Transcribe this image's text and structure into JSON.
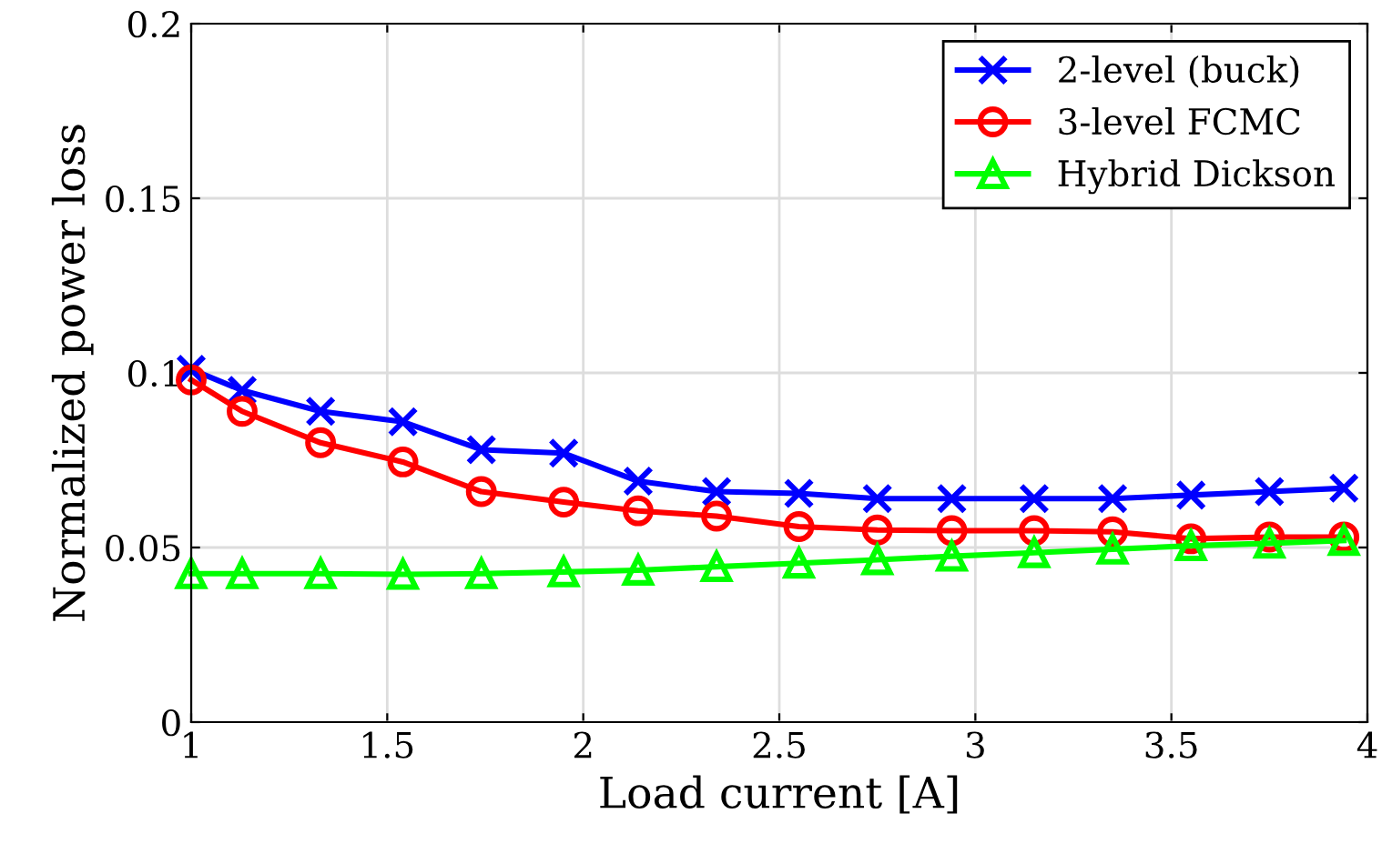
{
  "chart_data": {
    "type": "line",
    "xlabel": "Load current [A]",
    "ylabel": "Normalized power loss",
    "x": [
      1.0,
      1.13,
      1.33,
      1.54,
      1.74,
      1.95,
      2.14,
      2.34,
      2.55,
      2.75,
      2.94,
      3.15,
      3.35,
      3.55,
      3.75,
      3.94
    ],
    "series": [
      {
        "name": "2-level (buck)",
        "color": "#0000ff",
        "marker": "cross",
        "values": [
          0.101,
          0.095,
          0.089,
          0.086,
          0.078,
          0.077,
          0.069,
          0.066,
          0.0655,
          0.064,
          0.064,
          0.064,
          0.064,
          0.065,
          0.066,
          0.067
        ]
      },
      {
        "name": "3-level FCMC",
        "color": "#ff0000",
        "marker": "circle",
        "values": [
          0.098,
          0.089,
          0.08,
          0.0745,
          0.066,
          0.063,
          0.0605,
          0.059,
          0.056,
          0.055,
          0.0548,
          0.0548,
          0.0545,
          0.0525,
          0.053,
          0.053
        ]
      },
      {
        "name": "Hybrid Dickson",
        "color": "#00ff00",
        "marker": "triangle",
        "values": [
          0.0425,
          0.0425,
          0.0425,
          0.0423,
          0.0425,
          0.043,
          0.0435,
          0.0445,
          0.0455,
          0.0465,
          0.0475,
          0.0485,
          0.0495,
          0.0505,
          0.0512,
          0.052
        ]
      }
    ],
    "xlim": [
      1,
      4
    ],
    "xticks": [
      1,
      1.5,
      2,
      2.5,
      3,
      3.5,
      4
    ],
    "ylim": [
      0,
      0.2
    ],
    "yticks": [
      0,
      0.05,
      0.1,
      0.15,
      0.2
    ],
    "grid": true,
    "legend": "top right"
  }
}
